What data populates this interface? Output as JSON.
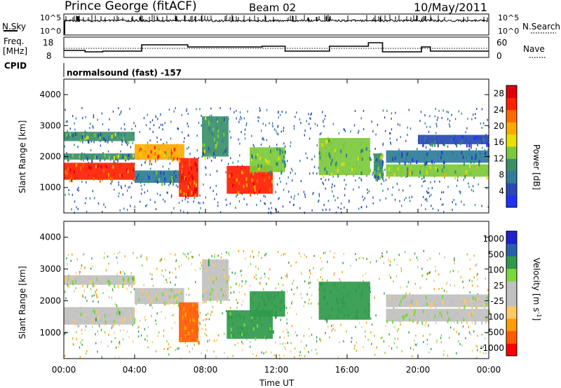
{
  "header": {
    "station": "Prince George (fitACF)",
    "beam": "Beam 02",
    "date": "10/May/2011"
  },
  "strip_panels": {
    "nsky_label": "N.Sky",
    "nsky_ticks": [
      "10^5",
      "10^0"
    ],
    "nsearch_label": "N.Search",
    "nsearch_ticks": [
      "10^5",
      "10^0"
    ],
    "freq_label_line1": "Freq.",
    "freq_label_line2": "[MHz]",
    "freq_ticks": [
      "18",
      "8"
    ],
    "nave_label": "Nave",
    "nave_ticks": [
      "60",
      "0"
    ],
    "cpid_label": "CPID",
    "cpid_text": "normalsound (fast) -157"
  },
  "colors": {
    "power_scale": [
      "#2030ff",
      "#2848b4",
      "#2e7d9a",
      "#3a8f6a",
      "#7cc93a",
      "#e8e000",
      "#ffaa00",
      "#ff6a00",
      "#ff2000",
      "#e00000"
    ],
    "velocity_scale": [
      "#ff0000",
      "#ff5a00",
      "#ff9c00",
      "#ffc864",
      "#c0c0c0",
      "#c0c0c0",
      "#7ad83a",
      "#2f9a4a",
      "#2a5fb0",
      "#2020d0"
    ]
  },
  "chart_data": [
    {
      "type": "heatmap",
      "name_shown": "Power",
      "ylabel": "Slant Range [km]",
      "yticks": [
        "4000",
        "3000",
        "2000",
        "1000"
      ],
      "ylim": [
        180,
        4500
      ],
      "xlim": [
        "00:00",
        "24:00"
      ],
      "colorbar_label": "Power [dB]",
      "colorbar_ticks": [
        "28",
        "24",
        "20",
        "16",
        "12",
        "8",
        "4"
      ],
      "colorbar_range": [
        0,
        30
      ],
      "bands": [
        {
          "start": 0.0,
          "end": 4.0,
          "range_low": 1250,
          "range_high": 1800,
          "value": 24
        },
        {
          "start": 0.0,
          "end": 4.0,
          "range_low": 1900,
          "range_high": 2100,
          "value": 10
        },
        {
          "start": 0.0,
          "end": 4.0,
          "range_low": 2500,
          "range_high": 2800,
          "value": 10
        },
        {
          "start": 4.0,
          "end": 6.8,
          "range_low": 1900,
          "range_high": 2400,
          "value": 20
        },
        {
          "start": 4.0,
          "end": 6.8,
          "range_low": 1150,
          "range_high": 1550,
          "value": 8
        },
        {
          "start": 6.5,
          "end": 7.6,
          "range_low": 700,
          "range_high": 1950,
          "value": 24
        },
        {
          "start": 7.8,
          "end": 9.3,
          "range_low": 2000,
          "range_high": 3300,
          "value": 10
        },
        {
          "start": 9.2,
          "end": 11.8,
          "range_low": 800,
          "range_high": 1700,
          "value": 24
        },
        {
          "start": 10.5,
          "end": 12.5,
          "range_low": 1500,
          "range_high": 2300,
          "value": 12
        },
        {
          "start": 14.4,
          "end": 17.3,
          "range_low": 1400,
          "range_high": 2600,
          "value": 12
        },
        {
          "start": 17.5,
          "end": 18.0,
          "range_low": 1300,
          "range_high": 2100,
          "value": 10
        },
        {
          "start": 18.2,
          "end": 24.0,
          "range_low": 1350,
          "range_high": 1750,
          "value": 14
        },
        {
          "start": 18.2,
          "end": 24.0,
          "range_low": 1800,
          "range_high": 2200,
          "value": 6
        },
        {
          "start": 20.0,
          "end": 24.0,
          "range_low": 2400,
          "range_high": 2700,
          "value": 5
        }
      ]
    },
    {
      "type": "heatmap",
      "name_shown": "Velocity",
      "ylabel": "Slant Range [km]",
      "yticks": [
        "4000",
        "3000",
        "2000",
        "1000"
      ],
      "ylim": [
        180,
        4500
      ],
      "xlabel": "Time UT",
      "xticks": [
        "00:00",
        "04:00",
        "08:00",
        "12:00",
        "16:00",
        "20:00",
        "00:00"
      ],
      "xlim": [
        "00:00",
        "24:00"
      ],
      "colorbar_label": "Velocity [m s^-1]",
      "colorbar_ticks": [
        "1000",
        "500",
        "100",
        "25",
        "-25",
        "-100",
        "-500",
        "-1000"
      ],
      "bands": [
        {
          "start": 0.0,
          "end": 4.0,
          "range_low": 1250,
          "range_high": 1800,
          "value": 10
        },
        {
          "start": 0.0,
          "end": 4.0,
          "range_low": 2500,
          "range_high": 2800,
          "value": 5
        },
        {
          "start": 4.0,
          "end": 6.8,
          "range_low": 1900,
          "range_high": 2400,
          "value": 0
        },
        {
          "start": 6.5,
          "end": 7.6,
          "range_low": 700,
          "range_high": 1950,
          "value": -500
        },
        {
          "start": 7.8,
          "end": 9.3,
          "range_low": 2000,
          "range_high": 3300,
          "value": 10
        },
        {
          "start": 9.2,
          "end": 11.8,
          "range_low": 800,
          "range_high": 1700,
          "value": 150
        },
        {
          "start": 10.5,
          "end": 12.5,
          "range_low": 1500,
          "range_high": 2300,
          "value": 400
        },
        {
          "start": 14.4,
          "end": 17.3,
          "range_low": 1400,
          "range_high": 2600,
          "value": 300
        },
        {
          "start": 18.2,
          "end": 24.0,
          "range_low": 1350,
          "range_high": 1750,
          "value": 0
        },
        {
          "start": 18.2,
          "end": 24.0,
          "range_low": 1800,
          "range_high": 2200,
          "value": 0
        }
      ]
    }
  ]
}
